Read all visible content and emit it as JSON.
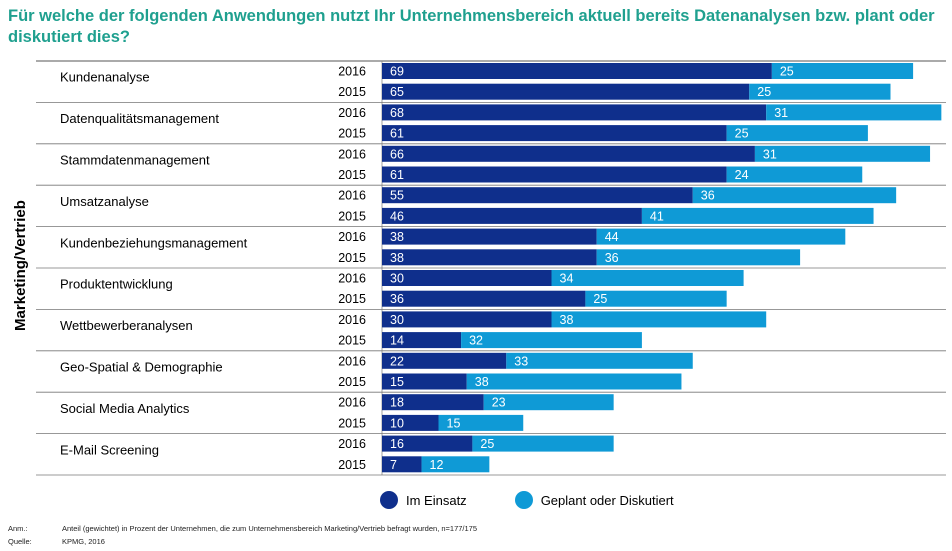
{
  "title": "Für welche der folgenden Anwendungen nutzt Ihr Unternehmensbereich aktuell bereits Datenanalysen bzw. plant oder diskutiert dies?",
  "side_label": "Marketing/Vertrieb",
  "colors": {
    "einsatz": "#0f2f8c",
    "geplant": "#0f9ad6",
    "title": "#1fa08f"
  },
  "chart_data": {
    "type": "bar",
    "stacked": true,
    "orientation": "horizontal",
    "categories": [
      "Kundenanalyse",
      "Datenqualitätsmanagement",
      "Stammdatenmanagement",
      "Umsatzanalyse",
      "Kundenbeziehungsmanagement",
      "Produktentwicklung",
      "Wettbewerberanalysen",
      "Geo-Spatial & Demographie",
      "Social Media Analytics",
      "E-Mail Screening"
    ],
    "years": [
      "2016",
      "2015"
    ],
    "series": [
      {
        "name": "Im Einsatz",
        "values": [
          [
            69,
            65
          ],
          [
            68,
            61
          ],
          [
            66,
            61
          ],
          [
            55,
            46
          ],
          [
            38,
            38
          ],
          [
            30,
            36
          ],
          [
            30,
            14
          ],
          [
            22,
            15
          ],
          [
            18,
            10
          ],
          [
            16,
            7
          ]
        ]
      },
      {
        "name": "Geplant oder Diskutiert",
        "values": [
          [
            25,
            25
          ],
          [
            31,
            25
          ],
          [
            31,
            24
          ],
          [
            36,
            41
          ],
          [
            44,
            36
          ],
          [
            34,
            25
          ],
          [
            38,
            32
          ],
          [
            33,
            38
          ],
          [
            23,
            15
          ],
          [
            25,
            12
          ]
        ]
      }
    ],
    "legend": [
      "Im Einsatz",
      "Geplant oder Diskutiert"
    ],
    "legend_position": "bottom"
  },
  "notes": {
    "anm_key": "Anm.:",
    "anm_text": "Anteil (gewichtet) in Prozent der Unternehmen, die zum Unternehmensbereich Marketing/Vertrieb befragt wurden, n=177/175",
    "quelle_key": "Quelle:",
    "quelle_text": "KPMG, 2016"
  }
}
